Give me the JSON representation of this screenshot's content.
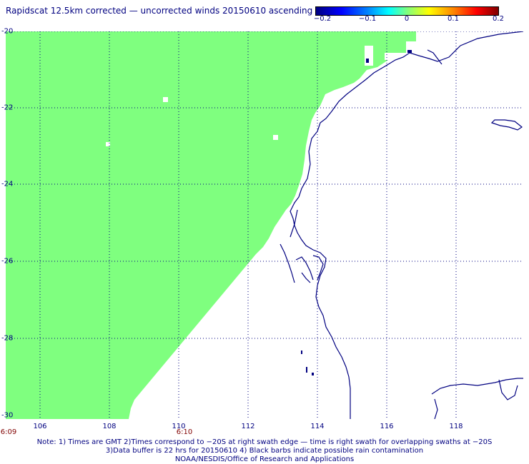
{
  "title": "Rapidscat 12.5km corrected — uncorrected winds 20150610 ascending",
  "colorbar": {
    "labels": [
      "−0.2",
      "−0.1",
      "0",
      "0.1",
      "0.2"
    ],
    "values": [
      -0.2,
      -0.1,
      0,
      0.1,
      0.2
    ],
    "colors": [
      "#000080",
      "#0000ff",
      "#00ffff",
      "#7fff7f",
      "#ffff00",
      "#ff0000",
      "#800000"
    ]
  },
  "map": {
    "lon_range": [
      105,
      120
    ],
    "lat_range": [
      -30,
      -20
    ],
    "lat_labels": [
      "-20",
      "-22",
      "-24",
      "-26",
      "-28",
      "-30"
    ],
    "lon_labels": [
      "106",
      "108",
      "110",
      "112",
      "114",
      "116",
      "118"
    ],
    "swath_color": "#7fff7f",
    "coast_color": "#000080",
    "grid_style": "dotted"
  },
  "times": [
    {
      "label": "6:09",
      "lon": 105.0
    },
    {
      "label": "6:10",
      "lon": 110.0
    }
  ],
  "notes": [
    "Note: 1) Times are GMT 2)Times correspond to −20S at right swath edge — time is right swath for overlapping swaths at −20S",
    "3)Data buffer is 22 hrs for 20150610 4) Black barbs indicate possible rain contamination",
    "NOAA/NESDIS/Office of Research and Applications"
  ]
}
